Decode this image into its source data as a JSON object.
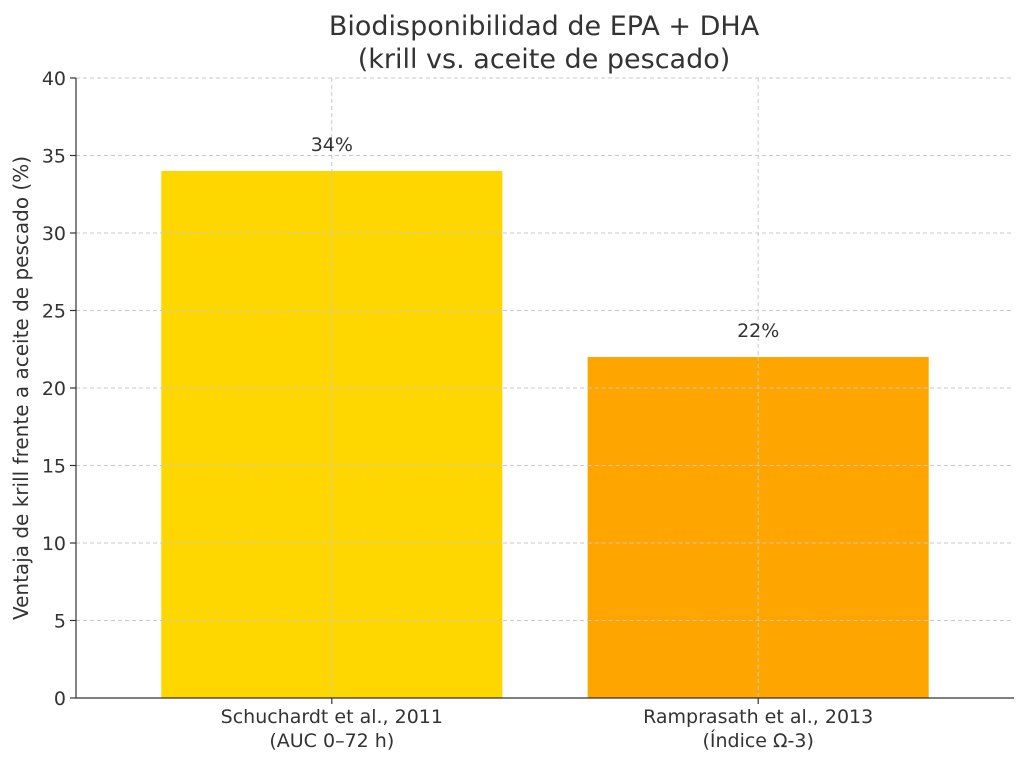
{
  "chart_data": {
    "type": "bar",
    "title": [
      "Biodisponibilidad de EPA + DHA",
      "(krill vs. aceite de pescado)"
    ],
    "xlabel": "",
    "ylabel": "Ventaja de krill frente a aceite de pescado (%)",
    "categories": [
      [
        "Schuchardt et al., 2011",
        "(AUC 0–72 h)"
      ],
      [
        "Ramprasath et al., 2013",
        "(Índice Ω-3)"
      ]
    ],
    "values": [
      34,
      22
    ],
    "data_labels": [
      "34%",
      "22%"
    ],
    "colors": [
      "#FFD700",
      "#FFA500"
    ],
    "ylim": [
      0,
      40
    ],
    "yticks": [
      0,
      5,
      10,
      15,
      20,
      25,
      30,
      35,
      40
    ],
    "grid": true
  }
}
